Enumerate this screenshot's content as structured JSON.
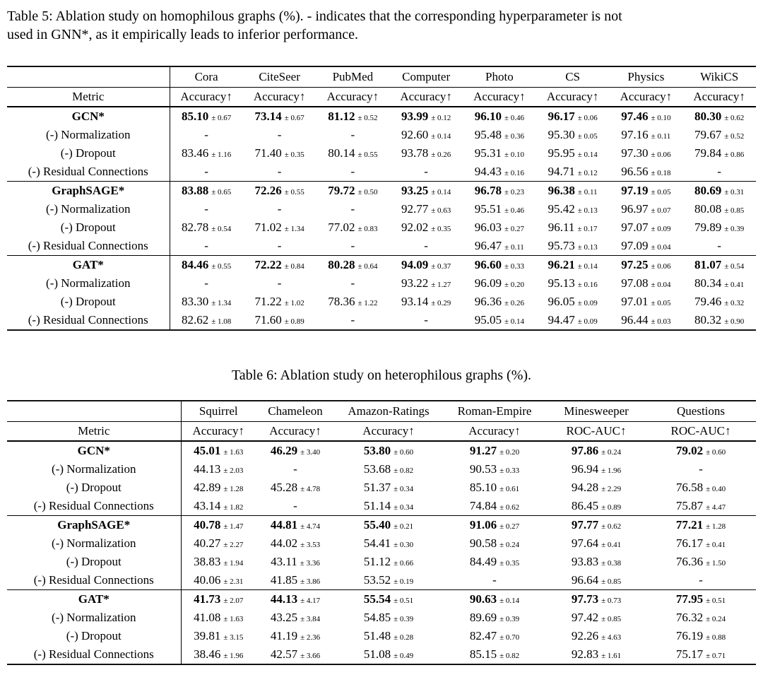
{
  "page": {
    "background": "#ffffff",
    "text_color": "#000000",
    "rule_color": "#111111"
  },
  "table5": {
    "caption_lines": [
      "Table 5: Ablation study on homophilous graphs (%). - indicates that the corresponding hyperparameter is not",
      "used in GNN*, as it empirically leads to inferior performance."
    ],
    "header": {
      "metric_label": "Metric",
      "datasets": [
        "Cora",
        "CiteSeer",
        "PubMed",
        "Computer",
        "Photo",
        "CS",
        "Physics",
        "WikiCS"
      ],
      "metrics": [
        "Accuracy↑",
        "Accuracy↑",
        "Accuracy↑",
        "Accuracy↑",
        "Accuracy↑",
        "Accuracy↑",
        "Accuracy↑",
        "Accuracy↑"
      ]
    },
    "blocks": [
      {
        "rows": [
          {
            "label": "GCN*",
            "bold": true,
            "cells": [
              {
                "v": "85.10",
                "e": "0.67"
              },
              {
                "v": "73.14",
                "e": "0.67"
              },
              {
                "v": "81.12",
                "e": "0.52"
              },
              {
                "v": "93.99",
                "e": "0.12"
              },
              {
                "v": "96.10",
                "e": "0.46"
              },
              {
                "v": "96.17",
                "e": "0.06"
              },
              {
                "v": "97.46",
                "e": "0.10"
              },
              {
                "v": "80.30",
                "e": "0.62"
              }
            ]
          },
          {
            "label": "(-) Normalization",
            "bold": false,
            "cells": [
              {
                "v": "-"
              },
              {
                "v": "-"
              },
              {
                "v": "-"
              },
              {
                "v": "92.60",
                "e": "0.14"
              },
              {
                "v": "95.48",
                "e": "0.36"
              },
              {
                "v": "95.30",
                "e": "0.05"
              },
              {
                "v": "97.16",
                "e": "0.11"
              },
              {
                "v": "79.67",
                "e": "0.52"
              }
            ]
          },
          {
            "label": "(-) Dropout",
            "bold": false,
            "cells": [
              {
                "v": "83.46",
                "e": "1.16"
              },
              {
                "v": "71.40",
                "e": "0.35"
              },
              {
                "v": "80.14",
                "e": "0.55"
              },
              {
                "v": "93.78",
                "e": "0.26"
              },
              {
                "v": "95.31",
                "e": "0.10"
              },
              {
                "v": "95.95",
                "e": "0.14"
              },
              {
                "v": "97.30",
                "e": "0.06"
              },
              {
                "v": "79.84",
                "e": "0.86"
              }
            ]
          },
          {
            "label": "(-) Residual Connections",
            "bold": false,
            "cells": [
              {
                "v": "-"
              },
              {
                "v": "-"
              },
              {
                "v": "-"
              },
              {
                "v": "-"
              },
              {
                "v": "94.43",
                "e": "0.16"
              },
              {
                "v": "94.71",
                "e": "0.12"
              },
              {
                "v": "96.56",
                "e": "0.18"
              },
              {
                "v": "-"
              }
            ]
          }
        ]
      },
      {
        "rows": [
          {
            "label": "GraphSAGE*",
            "bold": true,
            "cells": [
              {
                "v": "83.88",
                "e": "0.65"
              },
              {
                "v": "72.26",
                "e": "0.55"
              },
              {
                "v": "79.72",
                "e": "0.50"
              },
              {
                "v": "93.25",
                "e": "0.14"
              },
              {
                "v": "96.78",
                "e": "0.23"
              },
              {
                "v": "96.38",
                "e": "0.11"
              },
              {
                "v": "97.19",
                "e": "0.05"
              },
              {
                "v": "80.69",
                "e": "0.31"
              }
            ]
          },
          {
            "label": "(-) Normalization",
            "bold": false,
            "cells": [
              {
                "v": "-"
              },
              {
                "v": "-"
              },
              {
                "v": "-"
              },
              {
                "v": "92.77",
                "e": "0.63"
              },
              {
                "v": "95.51",
                "e": "0.46"
              },
              {
                "v": "95.42",
                "e": "0.13"
              },
              {
                "v": "96.97",
                "e": "0.07"
              },
              {
                "v": "80.08",
                "e": "0.85"
              }
            ]
          },
          {
            "label": "(-) Dropout",
            "bold": false,
            "cells": [
              {
                "v": "82.78",
                "e": "0.54"
              },
              {
                "v": "71.02",
                "e": "1.34"
              },
              {
                "v": "77.02",
                "e": "0.83"
              },
              {
                "v": "92.02",
                "e": "0.35"
              },
              {
                "v": "96.03",
                "e": "0.27"
              },
              {
                "v": "96.11",
                "e": "0.17"
              },
              {
                "v": "97.07",
                "e": "0.09"
              },
              {
                "v": "79.89",
                "e": "0.39"
              }
            ]
          },
          {
            "label": "(-) Residual Connections",
            "bold": false,
            "cells": [
              {
                "v": "-"
              },
              {
                "v": "-"
              },
              {
                "v": "-"
              },
              {
                "v": "-"
              },
              {
                "v": "96.47",
                "e": "0.11"
              },
              {
                "v": "95.73",
                "e": "0.13"
              },
              {
                "v": "97.09",
                "e": "0.04"
              },
              {
                "v": "-"
              }
            ]
          }
        ]
      },
      {
        "rows": [
          {
            "label": "GAT*",
            "bold": true,
            "cells": [
              {
                "v": "84.46",
                "e": "0.55"
              },
              {
                "v": "72.22",
                "e": "0.84"
              },
              {
                "v": "80.28",
                "e": "0.64"
              },
              {
                "v": "94.09",
                "e": "0.37"
              },
              {
                "v": "96.60",
                "e": "0.33"
              },
              {
                "v": "96.21",
                "e": "0.14"
              },
              {
                "v": "97.25",
                "e": "0.06"
              },
              {
                "v": "81.07",
                "e": "0.54"
              }
            ]
          },
          {
            "label": "(-) Normalization",
            "bold": false,
            "cells": [
              {
                "v": "-"
              },
              {
                "v": "-"
              },
              {
                "v": "-"
              },
              {
                "v": "93.22",
                "e": "1.27"
              },
              {
                "v": "96.09",
                "e": "0.20"
              },
              {
                "v": "95.13",
                "e": "0.16"
              },
              {
                "v": "97.08",
                "e": "0.04"
              },
              {
                "v": "80.34",
                "e": "0.41"
              }
            ]
          },
          {
            "label": "(-) Dropout",
            "bold": false,
            "cells": [
              {
                "v": "83.30",
                "e": "1.34"
              },
              {
                "v": "71.22",
                "e": "1.02"
              },
              {
                "v": "78.36",
                "e": "1.22"
              },
              {
                "v": "93.14",
                "e": "0.29"
              },
              {
                "v": "96.36",
                "e": "0.26"
              },
              {
                "v": "96.05",
                "e": "0.09"
              },
              {
                "v": "97.01",
                "e": "0.05"
              },
              {
                "v": "79.46",
                "e": "0.32"
              }
            ]
          },
          {
            "label": "(-) Residual Connections",
            "bold": false,
            "cells": [
              {
                "v": "82.62",
                "e": "1.08"
              },
              {
                "v": "71.60",
                "e": "0.89"
              },
              {
                "v": "-"
              },
              {
                "v": "-"
              },
              {
                "v": "95.05",
                "e": "0.14"
              },
              {
                "v": "94.47",
                "e": "0.09"
              },
              {
                "v": "96.44",
                "e": "0.03"
              },
              {
                "v": "80.32",
                "e": "0.90"
              }
            ]
          }
        ]
      }
    ]
  },
  "table6": {
    "caption": "Table 6: Ablation study on heterophilous graphs (%).",
    "header": {
      "metric_label": "Metric",
      "datasets": [
        "Squirrel",
        "Chameleon",
        "Amazon-Ratings",
        "Roman-Empire",
        "Minesweeper",
        "Questions"
      ],
      "metrics": [
        "Accuracy↑",
        "Accuracy↑",
        "Accuracy↑",
        "Accuracy↑",
        "ROC-AUC↑",
        "ROC-AUC↑"
      ]
    },
    "blocks": [
      {
        "rows": [
          {
            "label": " GCN*",
            "bold": true,
            "cells": [
              {
                "v": "45.01",
                "e": "1.63"
              },
              {
                "v": "46.29",
                "e": "3.40"
              },
              {
                "v": "53.80",
                "e": "0.60"
              },
              {
                "v": "91.27",
                "e": "0.20"
              },
              {
                "v": "97.86",
                "e": "0.24"
              },
              {
                "v": "79.02",
                "e": "0.60"
              }
            ]
          },
          {
            "label": "(-) Normalization",
            "bold": false,
            "cells": [
              {
                "v": "44.13",
                "e": "2.03"
              },
              {
                "v": "-"
              },
              {
                "v": "53.68",
                "e": "0.82"
              },
              {
                "v": "90.53",
                "e": "0.33"
              },
              {
                "v": "96.94",
                "e": "1.96"
              },
              {
                "v": "-"
              }
            ]
          },
          {
            "label": "(-) Dropout",
            "bold": false,
            "cells": [
              {
                "v": "42.89",
                "e": "1.28"
              },
              {
                "v": "45.28",
                "e": "4.78"
              },
              {
                "v": "51.37",
                "e": "0.34"
              },
              {
                "v": "85.10",
                "e": "0.61"
              },
              {
                "v": "94.28",
                "e": "2.29"
              },
              {
                "v": "76.58",
                "e": "0.40"
              }
            ]
          },
          {
            "label": "(-) Residual Connections",
            "bold": false,
            "cells": [
              {
                "v": "43.14",
                "e": "1.82"
              },
              {
                "v": "-"
              },
              {
                "v": "51.14",
                "e": "0.34"
              },
              {
                "v": "74.84",
                "e": "0.62"
              },
              {
                "v": "86.45",
                "e": "0.89"
              },
              {
                "v": "75.87",
                "e": "4.47"
              }
            ]
          }
        ]
      },
      {
        "rows": [
          {
            "label": "GraphSAGE*",
            "bold": true,
            "cells": [
              {
                "v": "40.78",
                "e": "1.47"
              },
              {
                "v": "44.81",
                "e": "4.74"
              },
              {
                "v": "55.40",
                "e": "0.21"
              },
              {
                "v": "91.06",
                "e": "0.27"
              },
              {
                "v": "97.77",
                "e": "0.62"
              },
              {
                "v": "77.21",
                "e": "1.28"
              }
            ]
          },
          {
            "label": "(-) Normalization",
            "bold": false,
            "cells": [
              {
                "v": "40.27",
                "e": "2.27"
              },
              {
                "v": "44.02",
                "e": "3.53"
              },
              {
                "v": "54.41",
                "e": "0.30"
              },
              {
                "v": "90.58",
                "e": "0.24"
              },
              {
                "v": "97.64",
                "e": "0.41"
              },
              {
                "v": "76.17",
                "e": "0.41"
              }
            ]
          },
          {
            "label": "(-) Dropout",
            "bold": false,
            "cells": [
              {
                "v": "38.83",
                "e": "1.94"
              },
              {
                "v": "43.11",
                "e": "3.36"
              },
              {
                "v": "51.12",
                "e": "0.66"
              },
              {
                "v": "84.49",
                "e": "0.35"
              },
              {
                "v": "93.83",
                "e": "0.38"
              },
              {
                "v": "76.36",
                "e": "1.50"
              }
            ]
          },
          {
            "label": "(-) Residual Connections",
            "bold": false,
            "cells": [
              {
                "v": "40.06",
                "e": "2.31"
              },
              {
                "v": "41.85",
                "e": "3.86"
              },
              {
                "v": "53.52",
                "e": "0.19"
              },
              {
                "v": "-"
              },
              {
                "v": "96.64",
                "e": "0.85"
              },
              {
                "v": "-"
              }
            ]
          }
        ]
      },
      {
        "rows": [
          {
            "label": "GAT*",
            "bold": true,
            "cells": [
              {
                "v": "41.73",
                "e": "2.07"
              },
              {
                "v": "44.13",
                "e": "4.17"
              },
              {
                "v": "55.54",
                "e": "0.51"
              },
              {
                "v": "90.63",
                "e": "0.14"
              },
              {
                "v": "97.73",
                "e": "0.73"
              },
              {
                "v": "77.95",
                "e": "0.51"
              }
            ]
          },
          {
            "label": "(-) Normalization",
            "bold": false,
            "cells": [
              {
                "v": "41.08",
                "e": "1.63"
              },
              {
                "v": "43.25",
                "e": "3.84"
              },
              {
                "v": "54.85",
                "e": "0.39"
              },
              {
                "v": "89.69",
                "e": "0.39"
              },
              {
                "v": "97.42",
                "e": "0.85"
              },
              {
                "v": "76.32",
                "e": "0.24"
              }
            ]
          },
          {
            "label": "(-) Dropout",
            "bold": false,
            "cells": [
              {
                "v": "39.81",
                "e": "3.15"
              },
              {
                "v": "41.19",
                "e": "2.36"
              },
              {
                "v": "51.48",
                "e": "0.28"
              },
              {
                "v": "82.47",
                "e": "0.70"
              },
              {
                "v": "92.26",
                "e": "4.63"
              },
              {
                "v": "76.19",
                "e": "0.88"
              }
            ]
          },
          {
            "label": "(-) Residual Connections",
            "bold": false,
            "cells": [
              {
                "v": "38.46",
                "e": "1.96"
              },
              {
                "v": "42.57",
                "e": "3.66"
              },
              {
                "v": "51.08",
                "e": "0.49"
              },
              {
                "v": "85.15",
                "e": "0.82"
              },
              {
                "v": "92.83",
                "e": "1.61"
              },
              {
                "v": "75.17",
                "e": "0.71"
              }
            ]
          }
        ]
      }
    ]
  }
}
